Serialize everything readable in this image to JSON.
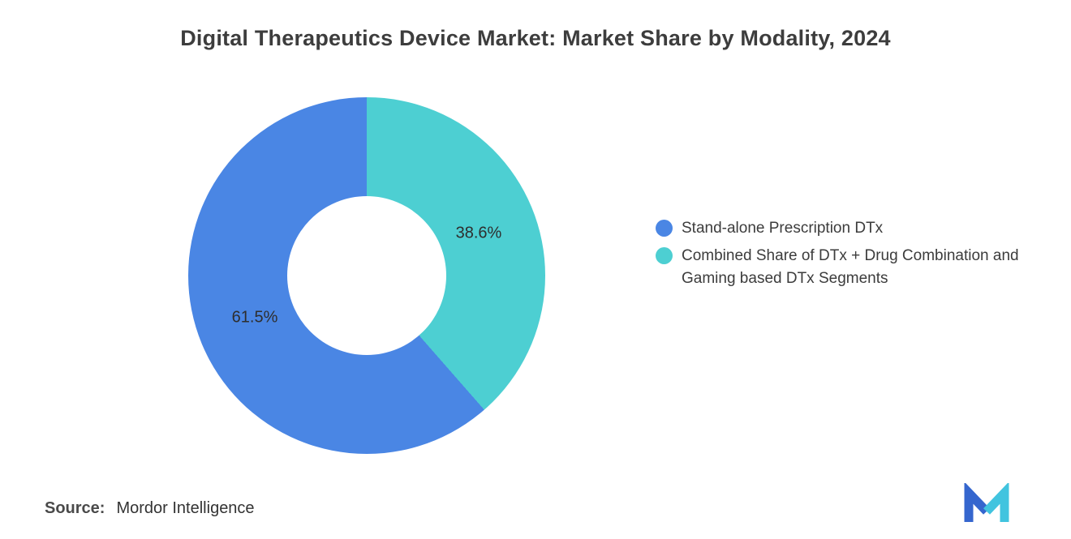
{
  "title": "Digital Therapeutics Device Market: Market Share by Modality, 2024",
  "source": {
    "label": "Source:",
    "value": "Mordor Intelligence"
  },
  "logo_name": "mordor-intelligence-logo",
  "colors": {
    "blue": "#4A86E4",
    "teal": "#4DCFD2",
    "title_text": "#3d3d3d"
  },
  "chart_data": {
    "type": "pie",
    "subtype": "donut",
    "title": "Digital Therapeutics Device Market: Market Share by Modality, 2024",
    "start_angle_deg": 0,
    "direction": "clockwise",
    "inner_radius_ratio": 0.45,
    "legend_position": "right",
    "series": [
      {
        "name": "Combined Share of DTx + Drug Combination and Gaming based DTx Segments",
        "value": 38.6,
        "label": "38.6%",
        "color": "#4DCFD2"
      },
      {
        "name": "Stand-alone Prescription DTx",
        "value": 61.5,
        "label": "61.5%",
        "color": "#4A86E4"
      }
    ]
  },
  "legend": {
    "items": [
      {
        "label": "Stand-alone Prescription DTx",
        "series_index": 1,
        "color": "#4A86E4"
      },
      {
        "label": "Combined Share of DTx + Drug Combination and Gaming based DTx Segments",
        "series_index": 0,
        "color": "#4DCFD2"
      }
    ]
  }
}
